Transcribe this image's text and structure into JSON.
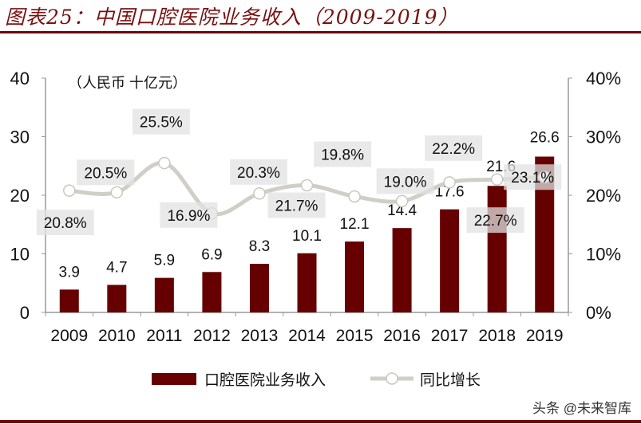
{
  "title": "图表25：中国口腔医院业务收入（2009-2019）",
  "watermark": "头条 @未来智库",
  "chart_data": {
    "type": "bar+line",
    "unit_note": "（人民币 十亿元）",
    "categories": [
      "2009",
      "2010",
      "2011",
      "2012",
      "2013",
      "2014",
      "2015",
      "2016",
      "2017",
      "2018",
      "2019"
    ],
    "series": [
      {
        "name": "口腔医院业务收入",
        "type": "bar",
        "axis": "left",
        "color": "#660000",
        "values": [
          3.9,
          4.7,
          5.9,
          6.9,
          8.3,
          10.1,
          12.1,
          14.4,
          17.6,
          21.6,
          26.6
        ],
        "labels": [
          "3.9",
          "4.7",
          "5.9",
          "6.9",
          "8.3",
          "10.1",
          "12.1",
          "14.4",
          "17.6",
          "21.6",
          "26.6"
        ]
      },
      {
        "name": "同比增长",
        "type": "line",
        "axis": "right",
        "color": "#cfcfc6",
        "values": [
          20.8,
          20.5,
          25.5,
          16.9,
          20.3,
          21.7,
          19.8,
          19.0,
          22.2,
          22.7,
          23.1
        ],
        "labels": [
          "20.8%",
          "20.5%",
          "25.5%",
          "16.9%",
          "20.3%",
          "21.7%",
          "19.8%",
          "19.0%",
          "22.2%",
          "22.7%",
          "23.1%"
        ]
      }
    ],
    "left_axis": {
      "range": [
        0,
        40
      ],
      "ticks": [
        "0",
        "10",
        "20",
        "30",
        "40"
      ]
    },
    "right_axis": {
      "range": [
        0,
        40
      ],
      "ticks": [
        "0%",
        "10%",
        "20%",
        "30%",
        "40%"
      ]
    },
    "grid": false,
    "legend": "bottom"
  }
}
